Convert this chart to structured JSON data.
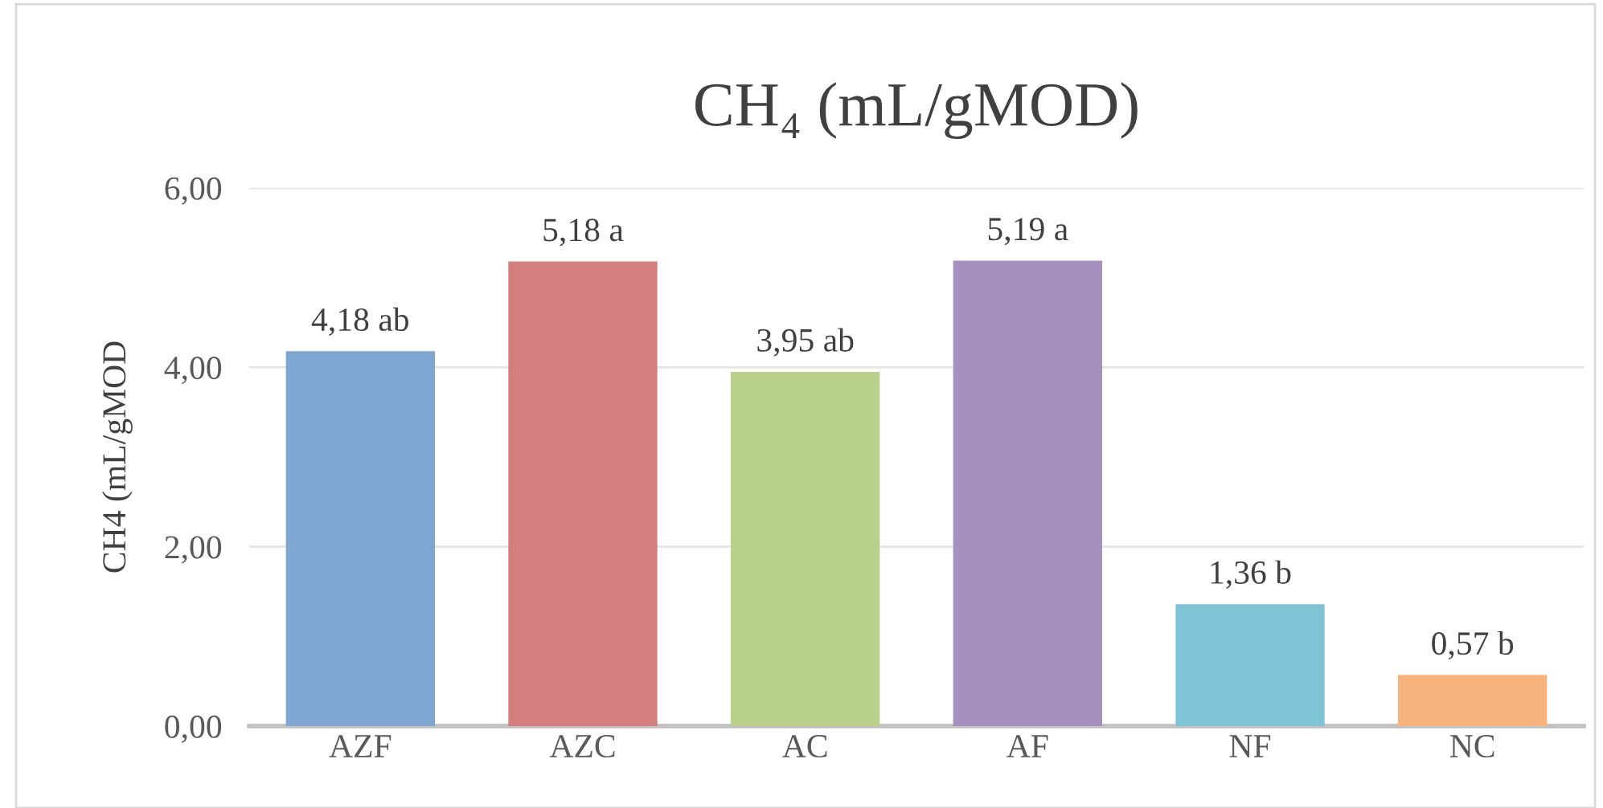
{
  "chart_data": {
    "type": "bar",
    "title": "CH₄ (mL/gMOD)",
    "ylabel": "CH4 (mL/gMOD",
    "categories": [
      "AZF",
      "AZC",
      "AC",
      "AF",
      "NF",
      "NC"
    ],
    "values": [
      4.18,
      5.18,
      3.95,
      5.19,
      1.36,
      0.57
    ],
    "colors": [
      "#7fa6d0",
      "#d47f7e",
      "#b9d08a",
      "#a590bf",
      "#7fc4d6",
      "#f8b37c"
    ],
    "value_labels": [
      "4,18 ab",
      "5,18 a",
      "3,95 ab",
      "5,19 a",
      "1,36 b",
      "0,57 b"
    ],
    "ylim": [
      0,
      6
    ],
    "yticks": [
      {
        "value": 0,
        "label": "0,00"
      },
      {
        "value": 2,
        "label": "2,00"
      },
      {
        "value": 4,
        "label": "4,00"
      },
      {
        "value": 6,
        "label": "6,00"
      }
    ],
    "grid": "y"
  }
}
